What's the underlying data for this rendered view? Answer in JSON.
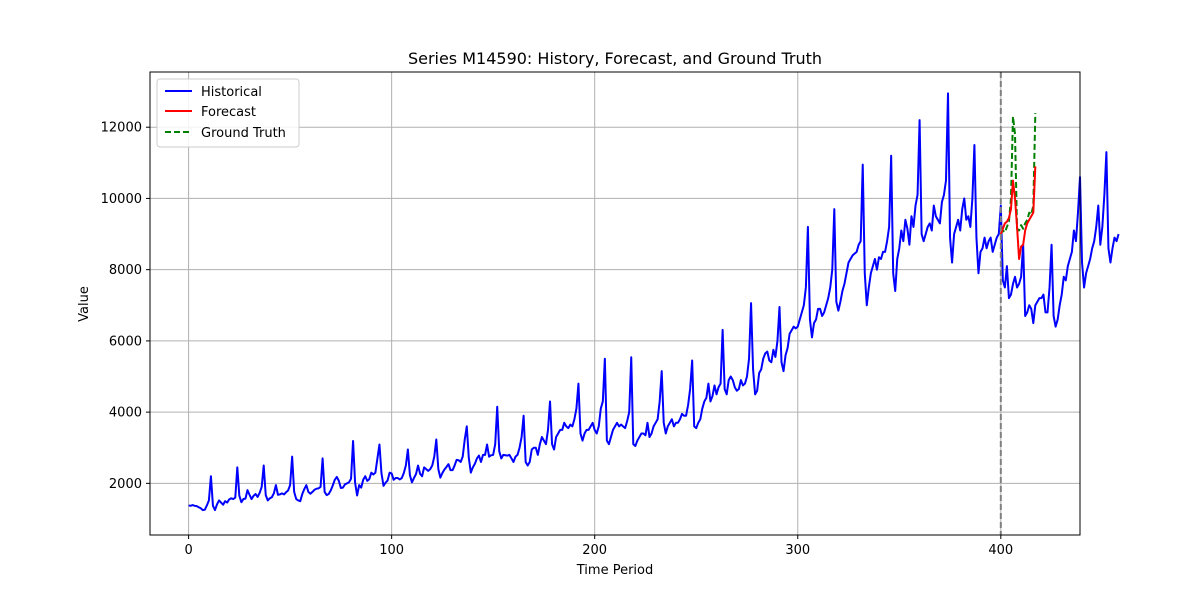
{
  "chart_data": {
    "type": "line",
    "title": "Series M14590: History, Forecast, and Ground Truth",
    "xlabel": "Time Period",
    "ylabel": "Value",
    "xlim": [
      -19,
      439
    ],
    "ylim": [
      550,
      13550
    ],
    "xticks": [
      0,
      100,
      200,
      300,
      400
    ],
    "yticks": [
      2000,
      4000,
      6000,
      8000,
      10000,
      12000
    ],
    "grid": true,
    "legend_position": "top-left",
    "forecast_marker_x": 400,
    "colors": {
      "historical": "#0000ff",
      "forecast": "#ff0000",
      "ground_truth": "#008000",
      "marker": "#808080"
    },
    "series": [
      {
        "name": "Historical",
        "style": "solid",
        "x_start": 0,
        "values": [
          1380,
          1370,
          1390,
          1370,
          1360,
          1330,
          1300,
          1250,
          1260,
          1380,
          1520,
          2200,
          1370,
          1250,
          1410,
          1520,
          1460,
          1400,
          1500,
          1460,
          1550,
          1580,
          1560,
          1600,
          2450,
          1650,
          1470,
          1560,
          1570,
          1810,
          1680,
          1560,
          1650,
          1700,
          1620,
          1730,
          1900,
          2500,
          1670,
          1520,
          1580,
          1610,
          1720,
          1950,
          1680,
          1690,
          1720,
          1690,
          1750,
          1800,
          1950,
          2750,
          1760,
          1560,
          1520,
          1500,
          1700,
          1840,
          1950,
          1760,
          1710,
          1760,
          1820,
          1850,
          1860,
          1900,
          2700,
          1760,
          1670,
          1700,
          1800,
          1940,
          2100,
          2180,
          2070,
          1870,
          1880,
          1970,
          2000,
          2030,
          2130,
          3190,
          2020,
          1660,
          1950,
          1880,
          2100,
          2200,
          2070,
          2120,
          2300,
          2250,
          2300,
          2700,
          3090,
          2280,
          1930,
          2020,
          2080,
          2300,
          2280,
          2100,
          2150,
          2150,
          2110,
          2150,
          2290,
          2500,
          2950,
          2230,
          2030,
          2150,
          2260,
          2500,
          2270,
          2200,
          2450,
          2400,
          2350,
          2400,
          2500,
          2750,
          3230,
          2400,
          2160,
          2290,
          2390,
          2460,
          2540,
          2370,
          2370,
          2500,
          2660,
          2650,
          2600,
          2750,
          3230,
          3600,
          2720,
          2300,
          2450,
          2550,
          2700,
          2780,
          2600,
          2800,
          2800,
          3090,
          2750,
          2790,
          2800,
          3100,
          4150,
          2900,
          2700,
          2800,
          2790,
          2780,
          2800,
          2700,
          2600,
          2750,
          2800,
          3000,
          3300,
          3900,
          2600,
          2500,
          2600,
          2950,
          3000,
          3000,
          2800,
          3100,
          3300,
          3200,
          3100,
          3500,
          4300,
          3100,
          2950,
          3300,
          3400,
          3500,
          3500,
          3700,
          3600,
          3550,
          3650,
          3600,
          3800,
          4100,
          4800,
          3400,
          3200,
          3400,
          3500,
          3500,
          3600,
          3700,
          3500,
          3400,
          3600,
          4100,
          4300,
          5500,
          3200,
          3100,
          3300,
          3500,
          3600,
          3700,
          3600,
          3650,
          3600,
          3550,
          3750,
          4000,
          5540,
          3100,
          3050,
          3200,
          3300,
          3400,
          3400,
          3350,
          3700,
          3300,
          3400,
          3600,
          3700,
          3800,
          4300,
          5150,
          3700,
          3400,
          3600,
          3700,
          3800,
          3600,
          3700,
          3700,
          3800,
          3950,
          3900,
          3900,
          4200,
          4650,
          5450,
          3600,
          3550,
          3700,
          3800,
          4100,
          4300,
          4400,
          4800,
          4300,
          4450,
          4750,
          4500,
          4700,
          4800,
          6310,
          4650,
          4500,
          4900,
          5000,
          4900,
          4700,
          4600,
          4650,
          4900,
          4750,
          4800,
          5000,
          5500,
          7060,
          5200,
          4500,
          4600,
          5100,
          5200,
          5500,
          5650,
          5700,
          5450,
          5400,
          5750,
          5550,
          6000,
          6950,
          5400,
          5150,
          5600,
          5800,
          6200,
          6300,
          6400,
          6350,
          6400,
          6600,
          6800,
          7000,
          7500,
          9200,
          6600,
          6100,
          6500,
          6600,
          6900,
          6900,
          6700,
          6800,
          7000,
          7200,
          7500,
          8000,
          9700,
          7100,
          6850,
          7100,
          7400,
          7600,
          7900,
          8200,
          8300,
          8400,
          8450,
          8500,
          8700,
          8800,
          10950,
          7900,
          7000,
          7500,
          7900,
          8100,
          8300,
          8000,
          8350,
          8300,
          8500,
          8500,
          8800,
          9200,
          11200,
          7900,
          7400,
          8300,
          8600,
          9100,
          8800,
          9400,
          9150,
          8700,
          9500,
          9200,
          9800,
          10100,
          12200,
          9000,
          8800,
          9000,
          9200,
          9300,
          9100,
          9800,
          9500,
          9400,
          9300,
          9900,
          10100,
          10500,
          12950,
          8900,
          8200,
          9000,
          9200,
          9400,
          9100,
          9700,
          10000,
          9400,
          9500,
          9200,
          10000,
          11500,
          8900,
          7900,
          8500,
          8600,
          8900,
          8600,
          8800,
          8900,
          8500,
          8700,
          8900,
          9000,
          9800,
          7700,
          7500,
          8100,
          7200,
          7300,
          7600,
          7800,
          7500,
          7600,
          7800,
          8700,
          6700,
          6800,
          7000,
          6900,
          6500,
          7000,
          7100,
          7200,
          7200,
          7300,
          6800,
          6800,
          7500,
          8700,
          6700,
          6400,
          6600,
          7000,
          7300,
          7800,
          7700,
          8100,
          8300,
          8500,
          9100,
          8800,
          9600,
          10600,
          8200,
          7500,
          7900,
          8100,
          8300,
          8600,
          8800,
          9200,
          9800,
          8700,
          9200,
          10100,
          11300,
          8600,
          8200,
          8600,
          8900,
          8800,
          9000
        ]
      },
      {
        "name": "Forecast",
        "style": "solid",
        "x_start": 400,
        "values": [
          9000,
          9150,
          9300,
          9350,
          9450,
          9700,
          10500,
          10000,
          9200,
          8300,
          8650,
          8700,
          9100,
          9300,
          9400,
          9500,
          9600,
          10900
        ]
      },
      {
        "name": "Ground Truth",
        "style": "dashed",
        "x_start": 400,
        "values": [
          9000,
          9100,
          9050,
          9200,
          9350,
          10000,
          12300,
          11800,
          9150,
          9100,
          9250,
          9150,
          9300,
          9400,
          9600,
          9550,
          9800,
          12400
        ]
      }
    ]
  }
}
